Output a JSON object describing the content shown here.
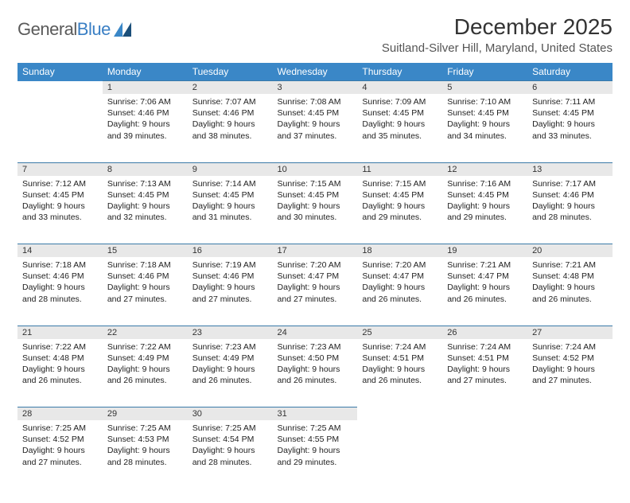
{
  "brand": {
    "name_part1": "General",
    "name_part2": "Blue"
  },
  "title": "December 2025",
  "location": "Suitland-Silver Hill, Maryland, United States",
  "day_headers": [
    "Sunday",
    "Monday",
    "Tuesday",
    "Wednesday",
    "Thursday",
    "Friday",
    "Saturday"
  ],
  "header_bg": "#3a87c7",
  "header_text_color": "#ffffff",
  "daynum_bg": "#e8e8e8",
  "rule_color": "#3a7aa8",
  "weeks": [
    [
      null,
      {
        "n": "1",
        "sr": "Sunrise: 7:06 AM",
        "ss": "Sunset: 4:46 PM",
        "d1": "Daylight: 9 hours",
        "d2": "and 39 minutes."
      },
      {
        "n": "2",
        "sr": "Sunrise: 7:07 AM",
        "ss": "Sunset: 4:46 PM",
        "d1": "Daylight: 9 hours",
        "d2": "and 38 minutes."
      },
      {
        "n": "3",
        "sr": "Sunrise: 7:08 AM",
        "ss": "Sunset: 4:45 PM",
        "d1": "Daylight: 9 hours",
        "d2": "and 37 minutes."
      },
      {
        "n": "4",
        "sr": "Sunrise: 7:09 AM",
        "ss": "Sunset: 4:45 PM",
        "d1": "Daylight: 9 hours",
        "d2": "and 35 minutes."
      },
      {
        "n": "5",
        "sr": "Sunrise: 7:10 AM",
        "ss": "Sunset: 4:45 PM",
        "d1": "Daylight: 9 hours",
        "d2": "and 34 minutes."
      },
      {
        "n": "6",
        "sr": "Sunrise: 7:11 AM",
        "ss": "Sunset: 4:45 PM",
        "d1": "Daylight: 9 hours",
        "d2": "and 33 minutes."
      }
    ],
    [
      {
        "n": "7",
        "sr": "Sunrise: 7:12 AM",
        "ss": "Sunset: 4:45 PM",
        "d1": "Daylight: 9 hours",
        "d2": "and 33 minutes."
      },
      {
        "n": "8",
        "sr": "Sunrise: 7:13 AM",
        "ss": "Sunset: 4:45 PM",
        "d1": "Daylight: 9 hours",
        "d2": "and 32 minutes."
      },
      {
        "n": "9",
        "sr": "Sunrise: 7:14 AM",
        "ss": "Sunset: 4:45 PM",
        "d1": "Daylight: 9 hours",
        "d2": "and 31 minutes."
      },
      {
        "n": "10",
        "sr": "Sunrise: 7:15 AM",
        "ss": "Sunset: 4:45 PM",
        "d1": "Daylight: 9 hours",
        "d2": "and 30 minutes."
      },
      {
        "n": "11",
        "sr": "Sunrise: 7:15 AM",
        "ss": "Sunset: 4:45 PM",
        "d1": "Daylight: 9 hours",
        "d2": "and 29 minutes."
      },
      {
        "n": "12",
        "sr": "Sunrise: 7:16 AM",
        "ss": "Sunset: 4:45 PM",
        "d1": "Daylight: 9 hours",
        "d2": "and 29 minutes."
      },
      {
        "n": "13",
        "sr": "Sunrise: 7:17 AM",
        "ss": "Sunset: 4:46 PM",
        "d1": "Daylight: 9 hours",
        "d2": "and 28 minutes."
      }
    ],
    [
      {
        "n": "14",
        "sr": "Sunrise: 7:18 AM",
        "ss": "Sunset: 4:46 PM",
        "d1": "Daylight: 9 hours",
        "d2": "and 28 minutes."
      },
      {
        "n": "15",
        "sr": "Sunrise: 7:18 AM",
        "ss": "Sunset: 4:46 PM",
        "d1": "Daylight: 9 hours",
        "d2": "and 27 minutes."
      },
      {
        "n": "16",
        "sr": "Sunrise: 7:19 AM",
        "ss": "Sunset: 4:46 PM",
        "d1": "Daylight: 9 hours",
        "d2": "and 27 minutes."
      },
      {
        "n": "17",
        "sr": "Sunrise: 7:20 AM",
        "ss": "Sunset: 4:47 PM",
        "d1": "Daylight: 9 hours",
        "d2": "and 27 minutes."
      },
      {
        "n": "18",
        "sr": "Sunrise: 7:20 AM",
        "ss": "Sunset: 4:47 PM",
        "d1": "Daylight: 9 hours",
        "d2": "and 26 minutes."
      },
      {
        "n": "19",
        "sr": "Sunrise: 7:21 AM",
        "ss": "Sunset: 4:47 PM",
        "d1": "Daylight: 9 hours",
        "d2": "and 26 minutes."
      },
      {
        "n": "20",
        "sr": "Sunrise: 7:21 AM",
        "ss": "Sunset: 4:48 PM",
        "d1": "Daylight: 9 hours",
        "d2": "and 26 minutes."
      }
    ],
    [
      {
        "n": "21",
        "sr": "Sunrise: 7:22 AM",
        "ss": "Sunset: 4:48 PM",
        "d1": "Daylight: 9 hours",
        "d2": "and 26 minutes."
      },
      {
        "n": "22",
        "sr": "Sunrise: 7:22 AM",
        "ss": "Sunset: 4:49 PM",
        "d1": "Daylight: 9 hours",
        "d2": "and 26 minutes."
      },
      {
        "n": "23",
        "sr": "Sunrise: 7:23 AM",
        "ss": "Sunset: 4:49 PM",
        "d1": "Daylight: 9 hours",
        "d2": "and 26 minutes."
      },
      {
        "n": "24",
        "sr": "Sunrise: 7:23 AM",
        "ss": "Sunset: 4:50 PM",
        "d1": "Daylight: 9 hours",
        "d2": "and 26 minutes."
      },
      {
        "n": "25",
        "sr": "Sunrise: 7:24 AM",
        "ss": "Sunset: 4:51 PM",
        "d1": "Daylight: 9 hours",
        "d2": "and 26 minutes."
      },
      {
        "n": "26",
        "sr": "Sunrise: 7:24 AM",
        "ss": "Sunset: 4:51 PM",
        "d1": "Daylight: 9 hours",
        "d2": "and 27 minutes."
      },
      {
        "n": "27",
        "sr": "Sunrise: 7:24 AM",
        "ss": "Sunset: 4:52 PM",
        "d1": "Daylight: 9 hours",
        "d2": "and 27 minutes."
      }
    ],
    [
      {
        "n": "28",
        "sr": "Sunrise: 7:25 AM",
        "ss": "Sunset: 4:52 PM",
        "d1": "Daylight: 9 hours",
        "d2": "and 27 minutes."
      },
      {
        "n": "29",
        "sr": "Sunrise: 7:25 AM",
        "ss": "Sunset: 4:53 PM",
        "d1": "Daylight: 9 hours",
        "d2": "and 28 minutes."
      },
      {
        "n": "30",
        "sr": "Sunrise: 7:25 AM",
        "ss": "Sunset: 4:54 PM",
        "d1": "Daylight: 9 hours",
        "d2": "and 28 minutes."
      },
      {
        "n": "31",
        "sr": "Sunrise: 7:25 AM",
        "ss": "Sunset: 4:55 PM",
        "d1": "Daylight: 9 hours",
        "d2": "and 29 minutes."
      },
      null,
      null,
      null
    ]
  ]
}
